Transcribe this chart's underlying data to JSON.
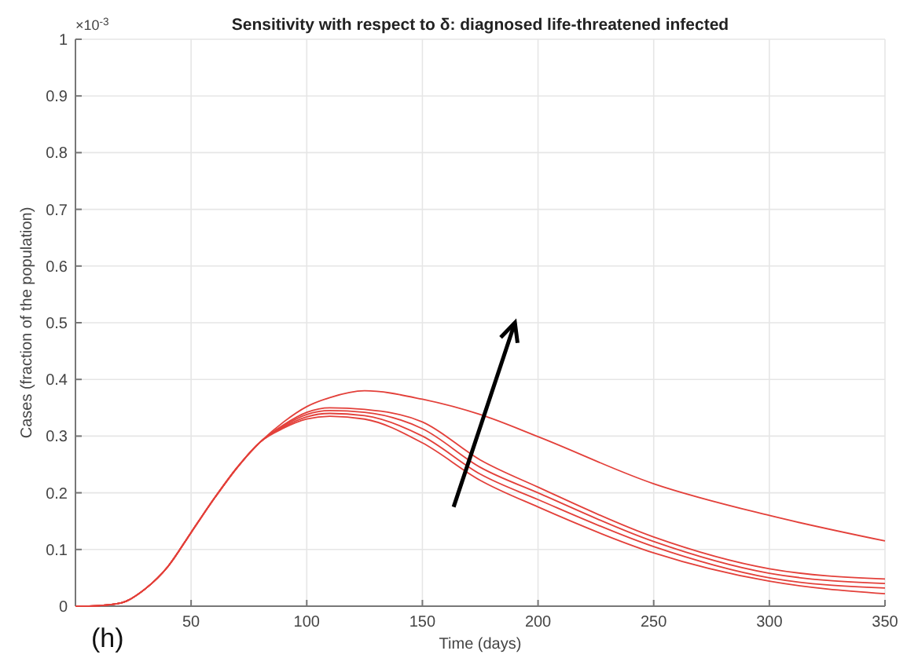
{
  "chart_data": {
    "type": "line",
    "title": "Sensitivity with respect to δ: diagnosed life-threatened infected",
    "xlabel": "Time (days)",
    "ylabel": "Cases (fraction of the population)",
    "annotations": [
      "×10$^{-3}$",
      "(h)"
    ],
    "x": [
      0,
      10,
      20,
      30,
      40,
      50,
      60,
      70,
      80,
      90,
      100,
      110,
      125,
      150,
      175,
      200,
      250,
      300,
      350
    ],
    "series": [
      {
        "color": "#e3403a",
        "values": [
          0,
          0.001,
          0.006,
          0.03,
          0.07,
          0.13,
          0.19,
          0.245,
          0.29,
          0.325,
          0.352,
          0.368,
          0.38,
          0.365,
          0.338,
          0.299,
          0.216,
          0.16,
          0.115
        ]
      },
      {
        "color": "#e3403a",
        "values": [
          0,
          0.001,
          0.006,
          0.03,
          0.07,
          0.13,
          0.19,
          0.245,
          0.29,
          0.32,
          0.342,
          0.35,
          0.347,
          0.325,
          0.258,
          0.21,
          0.122,
          0.066,
          0.048
        ]
      },
      {
        "color": "#e3403a",
        "values": [
          0,
          0.001,
          0.006,
          0.03,
          0.07,
          0.13,
          0.19,
          0.245,
          0.29,
          0.318,
          0.338,
          0.345,
          0.342,
          0.313,
          0.245,
          0.2,
          0.114,
          0.058,
          0.04
        ]
      },
      {
        "color": "#e3403a",
        "values": [
          0,
          0.001,
          0.006,
          0.03,
          0.07,
          0.13,
          0.19,
          0.245,
          0.29,
          0.316,
          0.334,
          0.34,
          0.336,
          0.3,
          0.233,
          0.188,
          0.105,
          0.05,
          0.032
        ]
      },
      {
        "color": "#e3403a",
        "values": [
          0,
          0.001,
          0.006,
          0.03,
          0.07,
          0.13,
          0.19,
          0.245,
          0.29,
          0.314,
          0.33,
          0.335,
          0.33,
          0.288,
          0.222,
          0.175,
          0.094,
          0.044,
          0.022
        ]
      }
    ],
    "xlim": [
      0,
      350
    ],
    "xticks": [
      50,
      100,
      150,
      200,
      250,
      300,
      350
    ],
    "ylim": [
      0,
      1
    ],
    "yticks": [
      0,
      0.1,
      0.2,
      0.3,
      0.4,
      0.5,
      0.6,
      0.7,
      0.8,
      0.9,
      1
    ],
    "grid": true,
    "marker": "none",
    "line_style": "solid"
  }
}
